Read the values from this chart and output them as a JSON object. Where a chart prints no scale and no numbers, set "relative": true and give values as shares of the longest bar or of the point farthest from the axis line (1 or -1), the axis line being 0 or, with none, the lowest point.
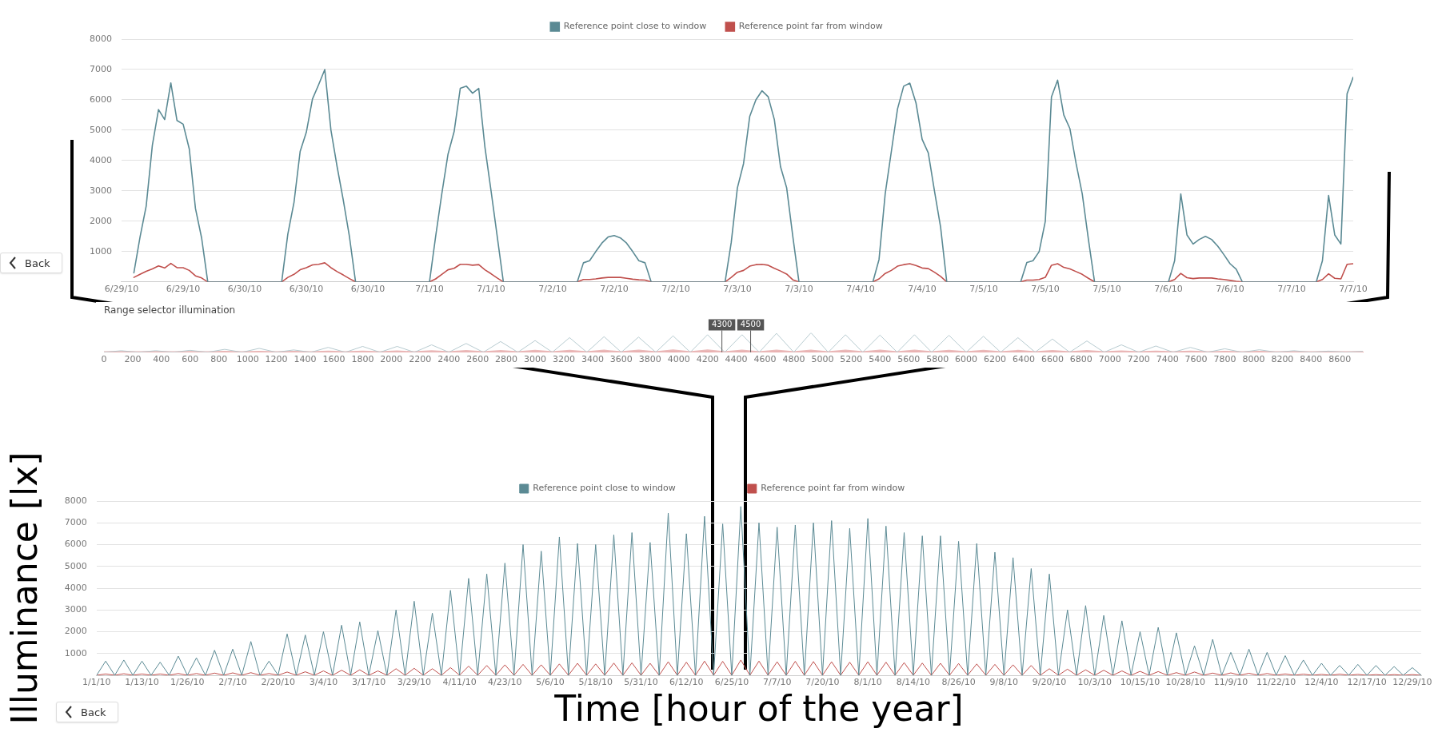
{
  "chart_data": [
    {
      "type": "line",
      "legend": "top",
      "grid": "y",
      "marker": "none",
      "annotations": [
        "Back"
      ],
      "x": [
        "--06-29T06:00",
        "--06-29T07:00",
        "--06-29T08:00",
        "--06-29T09:00",
        "--06-29T10:00",
        "--06-29T11:00",
        "--06-29T12:00",
        "--06-29T13:00",
        "--06-29T14:00",
        "--06-29T15:00",
        "--06-29T16:00",
        "--06-29T17:00",
        "--06-29T18:00",
        "--06-30T06:00",
        "--06-30T07:00",
        "--06-30T08:00",
        "--06-30T09:00",
        "--06-30T10:00",
        "--06-30T11:00",
        "--06-30T12:00",
        "--06-30T13:00",
        "--06-30T14:00",
        "--06-30T15:00",
        "--06-30T16:00",
        "--06-30T17:00",
        "--06-30T18:00",
        "--07-01T06:00",
        "--07-01T07:00",
        "--07-01T08:00",
        "--07-01T09:00",
        "--07-01T10:00",
        "--07-01T11:00",
        "--07-01T12:00",
        "--07-01T13:00",
        "--07-01T14:00",
        "--07-01T15:00",
        "--07-01T16:00",
        "--07-01T17:00",
        "--07-01T18:00",
        "--07-02T06:00",
        "--07-02T07:00",
        "--07-02T08:00",
        "--07-02T09:00",
        "--07-02T10:00",
        "--07-02T11:00",
        "--07-02T12:00",
        "--07-02T13:00",
        "--07-02T14:00",
        "--07-02T15:00",
        "--07-02T16:00",
        "--07-02T17:00",
        "--07-02T18:00",
        "--07-03T06:00",
        "--07-03T07:00",
        "--07-03T08:00",
        "--07-03T09:00",
        "--07-03T10:00",
        "--07-03T11:00",
        "--07-03T12:00",
        "--07-03T13:00",
        "--07-03T14:00",
        "--07-03T15:00",
        "--07-03T16:00",
        "--07-03T17:00",
        "--07-03T18:00",
        "--07-04T06:00",
        "--07-04T07:00",
        "--07-04T08:00",
        "--07-04T09:00",
        "--07-04T10:00",
        "--07-04T11:00",
        "--07-04T12:00",
        "--07-04T13:00",
        "--07-04T14:00",
        "--07-04T15:00",
        "--07-04T16:00",
        "--07-04T17:00",
        "--07-04T18:00",
        "--07-05T06:00",
        "--07-05T07:00",
        "--07-05T08:00",
        "--07-05T09:00",
        "--07-05T10:00",
        "--07-05T11:00",
        "--07-05T12:00",
        "--07-05T13:00",
        "--07-05T14:00",
        "--07-05T15:00",
        "--07-05T16:00",
        "--07-05T17:00",
        "--07-05T18:00",
        "--07-06T06:00",
        "--07-06T07:00",
        "--07-06T08:00",
        "--07-06T09:00",
        "--07-06T10:00",
        "--07-06T11:00",
        "--07-06T12:00",
        "--07-06T13:00",
        "--07-06T14:00",
        "--07-06T15:00",
        "--07-06T16:00",
        "--07-06T17:00",
        "--07-06T18:00",
        "--07-07T06:00",
        "--07-07T07:00",
        "--07-07T08:00",
        "--07-07T09:00",
        "--07-07T10:00",
        "--07-07T11:00",
        "--07-07T12:00"
      ],
      "series": [
        {
          "name": "Reference point close to window",
          "color": "#5b8a94",
          "values": [
            300,
            1480,
            2500,
            4500,
            5680,
            5350,
            6560,
            5320,
            5200,
            4380,
            2420,
            1450,
            0,
            0,
            1580,
            2620,
            4300,
            4930,
            6030,
            6500,
            7000,
            5000,
            3800,
            2700,
            1500,
            0,
            0,
            1500,
            2900,
            4200,
            4950,
            6380,
            6450,
            6220,
            6380,
            4450,
            3000,
            1500,
            0,
            0,
            630,
            700,
            1000,
            1280,
            1480,
            1530,
            1450,
            1280,
            1000,
            700,
            630,
            0,
            0,
            1300,
            3100,
            3900,
            5450,
            6000,
            6300,
            6100,
            5350,
            3800,
            3100,
            1500,
            0,
            0,
            740,
            2900,
            4300,
            5700,
            6450,
            6550,
            5900,
            4700,
            4250,
            3000,
            1800,
            0,
            0,
            640,
            700,
            1000,
            2000,
            6100,
            6650,
            5500,
            5050,
            3900,
            2900,
            1400,
            0,
            0,
            700,
            2900,
            1550,
            1250,
            1400,
            1500,
            1400,
            1180,
            900,
            600,
            420,
            0,
            0,
            700,
            2850,
            1550,
            1250,
            6200,
            6750
          ]
        },
        {
          "name": "Reference point far from window",
          "color": "#c0504d",
          "values": [
            150,
            250,
            350,
            430,
            530,
            460,
            610,
            470,
            470,
            380,
            200,
            130,
            0,
            0,
            150,
            250,
            400,
            470,
            560,
            580,
            630,
            470,
            340,
            230,
            110,
            0,
            0,
            100,
            250,
            400,
            450,
            580,
            580,
            550,
            570,
            400,
            270,
            130,
            0,
            0,
            80,
            80,
            100,
            130,
            150,
            150,
            150,
            120,
            90,
            70,
            60,
            0,
            0,
            150,
            320,
            380,
            520,
            570,
            580,
            550,
            450,
            360,
            260,
            70,
            0,
            0,
            100,
            280,
            380,
            520,
            570,
            600,
            540,
            460,
            440,
            320,
            180,
            0,
            0,
            60,
            60,
            80,
            150,
            550,
            600,
            480,
            430,
            340,
            250,
            120,
            0,
            0,
            80,
            280,
            140,
            110,
            130,
            130,
            130,
            100,
            80,
            50,
            20,
            0,
            0,
            80,
            270,
            120,
            100,
            580,
            600
          ]
        }
      ],
      "xlim": [
        "--06-29T04:00",
        "--07-07T12:00"
      ],
      "xticks": [
        {
          "value": "--06-29T04:00",
          "label": "6/29/10"
        },
        {
          "value": "--06-29T14:00",
          "label": "6/29/10"
        },
        {
          "value": "--06-30T00:00",
          "label": "6/30/10"
        },
        {
          "value": "--06-30T10:00",
          "label": "6/30/10"
        },
        {
          "value": "--06-30T20:00",
          "label": "6/30/10"
        },
        {
          "value": "--07-01T06:00",
          "label": "7/1/10"
        },
        {
          "value": "--07-01T16:00",
          "label": "7/1/10"
        },
        {
          "value": "--07-02T02:00",
          "label": "7/2/10"
        },
        {
          "value": "--07-02T12:00",
          "label": "7/2/10"
        },
        {
          "value": "--07-02T22:00",
          "label": "7/2/10"
        },
        {
          "value": "--07-03T08:00",
          "label": "7/3/10"
        },
        {
          "value": "--07-03T18:00",
          "label": "7/3/10"
        },
        {
          "value": "--07-04T04:00",
          "label": "7/4/10"
        },
        {
          "value": "--07-04T14:00",
          "label": "7/4/10"
        },
        {
          "value": "--07-05T00:00",
          "label": "7/5/10"
        },
        {
          "value": "--07-05T10:00",
          "label": "7/5/10"
        },
        {
          "value": "--07-05T20:00",
          "label": "7/5/10"
        },
        {
          "value": "--07-06T06:00",
          "label": "7/6/10"
        },
        {
          "value": "--07-06T16:00",
          "label": "7/6/10"
        },
        {
          "value": "--07-07T02:00",
          "label": "7/7/10"
        },
        {
          "value": "--07-07T12:00",
          "label": "7/7/10"
        }
      ],
      "ylim": [
        0,
        8000
      ],
      "yticks": [
        1000,
        2000,
        3000,
        4000,
        5000,
        6000,
        7000,
        8000
      ]
    },
    {
      "type": "line",
      "title": "Range selector illumination",
      "relative": true,
      "grid": false,
      "marker": "none",
      "x": [
        0,
        120,
        240,
        360,
        480,
        600,
        720,
        840,
        960,
        1080,
        1200,
        1320,
        1440,
        1560,
        1680,
        1800,
        1920,
        2040,
        2160,
        2280,
        2400,
        2520,
        2640,
        2760,
        2880,
        3000,
        3120,
        3240,
        3360,
        3480,
        3600,
        3720,
        3840,
        3960,
        4080,
        4200,
        4320,
        4440,
        4560,
        4680,
        4800,
        4920,
        5040,
        5160,
        5280,
        5400,
        5520,
        5640,
        5760,
        5880,
        6000,
        6120,
        6240,
        6360,
        6480,
        6600,
        6720,
        6840,
        6960,
        7080,
        7200,
        7320,
        7440,
        7560,
        7680,
        7800,
        7920,
        8040,
        8160,
        8280,
        8400,
        8520,
        8640,
        8760
      ],
      "series": [
        {
          "color": "#b7cbd0",
          "values": [
            0,
            0.08,
            0,
            0.08,
            0,
            0.1,
            0,
            0.15,
            0,
            0.2,
            0,
            0.12,
            0,
            0.25,
            0,
            0.3,
            0,
            0.3,
            0,
            0.38,
            0,
            0.45,
            0,
            0.55,
            0,
            0.6,
            0,
            0.75,
            0,
            0.8,
            0,
            0.78,
            0,
            0.84,
            0,
            0.9,
            0,
            0.9,
            0,
            0.97,
            0,
            1,
            0,
            0.9,
            0,
            0.88,
            0,
            0.9,
            0,
            0.87,
            0,
            0.82,
            0,
            0.75,
            0,
            0.68,
            0,
            0.58,
            0,
            0.38,
            0,
            0.32,
            0,
            0.25,
            0,
            0.18,
            0,
            0.13,
            0,
            0.08,
            0,
            0.06,
            0,
            0.05
          ]
        },
        {
          "color": "#eab9b9",
          "values": [
            0,
            0.01,
            0,
            0.01,
            0,
            0.01,
            0,
            0.02,
            0,
            0.02,
            0,
            0.02,
            0,
            0.03,
            0,
            0.03,
            0,
            0.04,
            0,
            0.05,
            0,
            0.06,
            0,
            0.06,
            0,
            0.07,
            0,
            0.07,
            0,
            0.08,
            0,
            0.08,
            0,
            0.09,
            0,
            0.09,
            0,
            0.08,
            0,
            0.08,
            0,
            0.08,
            0,
            0.08,
            0,
            0.08,
            0,
            0.08,
            0,
            0.07,
            0,
            0.07,
            0,
            0.07,
            0,
            0.06,
            0,
            0.06,
            0,
            0.04,
            0,
            0.03,
            0,
            0.03,
            0,
            0.02,
            0,
            0.02,
            0,
            0.01,
            0,
            0.01,
            0,
            0.01
          ]
        }
      ],
      "xlim": [
        0,
        8760
      ],
      "xticks": [
        0,
        200,
        400,
        600,
        800,
        1000,
        1200,
        1400,
        1600,
        1800,
        2000,
        2200,
        2400,
        2600,
        2800,
        3000,
        3200,
        3400,
        3600,
        3800,
        4000,
        4200,
        4400,
        4600,
        4800,
        5000,
        5200,
        5400,
        5600,
        5800,
        6000,
        6200,
        6400,
        6600,
        6800,
        7000,
        7200,
        7400,
        7600,
        7800,
        8000,
        8200,
        8400,
        8600
      ],
      "ref_lines": [
        {
          "axis": "x",
          "value": 4300,
          "label": "4300"
        },
        {
          "axis": "x",
          "value": 4500,
          "label": "4500"
        }
      ]
    },
    {
      "type": "line",
      "legend": "top",
      "grid": "y",
      "marker": "none",
      "annotations": [
        "Back"
      ],
      "xlabel": "Time [hour of the year]",
      "ylabel": "Illuminance [lx]",
      "x": [
        "--01-01T00:00",
        "--01-03T12:00",
        "--01-06T00:00",
        "--01-08T12:00",
        "--01-11T00:00",
        "--01-13T12:00",
        "--01-16T00:00",
        "--01-18T12:00",
        "--01-21T00:00",
        "--01-23T12:00",
        "--01-26T00:00",
        "--01-28T12:00",
        "--01-31T00:00",
        "--02-02T12:00",
        "--02-05T00:00",
        "--02-07T12:00",
        "--02-10T00:00",
        "--02-12T12:00",
        "--02-15T00:00",
        "--02-17T12:00",
        "--02-20T00:00",
        "--02-22T12:00",
        "--02-25T00:00",
        "--02-27T12:00",
        "--03-02T00:00",
        "--03-04T12:00",
        "--03-07T00:00",
        "--03-09T12:00",
        "--03-12T00:00",
        "--03-14T12:00",
        "--03-17T00:00",
        "--03-19T12:00",
        "--03-22T00:00",
        "--03-24T12:00",
        "--03-27T00:00",
        "--03-29T12:00",
        "--04-01T00:00",
        "--04-03T12:00",
        "--04-06T00:00",
        "--04-08T12:00",
        "--04-11T00:00",
        "--04-13T12:00",
        "--04-16T00:00",
        "--04-18T12:00",
        "--04-21T00:00",
        "--04-23T12:00",
        "--04-26T00:00",
        "--04-28T12:00",
        "--05-01T00:00",
        "--05-03T12:00",
        "--05-06T00:00",
        "--05-08T12:00",
        "--05-11T00:00",
        "--05-13T12:00",
        "--05-16T00:00",
        "--05-18T12:00",
        "--05-21T00:00",
        "--05-23T12:00",
        "--05-26T00:00",
        "--05-28T12:00",
        "--05-31T00:00",
        "--06-02T12:00",
        "--06-05T00:00",
        "--06-07T12:00",
        "--06-10T00:00",
        "--06-12T12:00",
        "--06-15T00:00",
        "--06-17T12:00",
        "--06-20T00:00",
        "--06-22T12:00",
        "--06-25T00:00",
        "--06-27T12:00",
        "--06-30T00:00",
        "--07-02T12:00",
        "--07-05T00:00",
        "--07-07T12:00",
        "--07-10T00:00",
        "--07-12T12:00",
        "--07-15T00:00",
        "--07-17T12:00",
        "--07-20T00:00",
        "--07-22T12:00",
        "--07-25T00:00",
        "--07-27T12:00",
        "--07-30T00:00",
        "--08-01T12:00",
        "--08-04T00:00",
        "--08-06T12:00",
        "--08-09T00:00",
        "--08-11T12:00",
        "--08-14T00:00",
        "--08-16T12:00",
        "--08-19T00:00",
        "--08-21T12:00",
        "--08-24T00:00",
        "--08-26T12:00",
        "--08-29T00:00",
        "--08-31T12:00",
        "--09-03T00:00",
        "--09-05T12:00",
        "--09-08T00:00",
        "--09-10T12:00",
        "--09-13T00:00",
        "--09-15T12:00",
        "--09-18T00:00",
        "--09-20T12:00",
        "--09-23T00:00",
        "--09-25T12:00",
        "--09-28T00:00",
        "--09-30T12:00",
        "--10-03T00:00",
        "--10-05T12:00",
        "--10-08T00:00",
        "--10-10T12:00",
        "--10-13T00:00",
        "--10-15T12:00",
        "--10-18T00:00",
        "--10-20T12:00",
        "--10-23T00:00",
        "--10-25T12:00",
        "--10-28T00:00",
        "--10-30T12:00",
        "--11-02T00:00",
        "--11-04T12:00",
        "--11-07T00:00",
        "--11-09T12:00",
        "--11-12T00:00",
        "--11-14T12:00",
        "--11-17T00:00",
        "--11-19T12:00",
        "--11-22T00:00",
        "--11-24T12:00",
        "--11-27T00:00",
        "--11-29T12:00",
        "--12-02T00:00",
        "--12-04T12:00",
        "--12-07T00:00",
        "--12-09T12:00",
        "--12-12T00:00",
        "--12-14T12:00",
        "--12-17T00:00",
        "--12-19T12:00",
        "--12-22T00:00",
        "--12-24T12:00",
        "--12-27T00:00",
        "--12-29T12:00",
        "--12-31T23:00"
      ],
      "series": [
        {
          "name": "Reference point close to window",
          "color": "#5b8a94",
          "values": [
            0,
            650,
            0,
            700,
            0,
            650,
            0,
            600,
            0,
            880,
            0,
            800,
            0,
            1150,
            0,
            1200,
            0,
            1550,
            0,
            650,
            0,
            1900,
            0,
            1850,
            0,
            2000,
            0,
            2300,
            0,
            2450,
            0,
            2050,
            0,
            3000,
            0,
            3400,
            0,
            2850,
            0,
            3900,
            0,
            4450,
            0,
            4650,
            0,
            5150,
            0,
            6000,
            0,
            5700,
            0,
            6350,
            0,
            6050,
            0,
            6000,
            0,
            6450,
            0,
            6550,
            0,
            6100,
            0,
            7450,
            0,
            6500,
            0,
            7300,
            0,
            6950,
            0,
            7750,
            0,
            7000,
            0,
            6800,
            0,
            6900,
            0,
            7000,
            0,
            7100,
            0,
            6750,
            0,
            7200,
            0,
            6850,
            0,
            6550,
            0,
            6400,
            0,
            6400,
            0,
            6150,
            0,
            6050,
            0,
            5650,
            0,
            5400,
            0,
            4900,
            0,
            4650,
            0,
            3000,
            0,
            3200,
            0,
            2750,
            0,
            2500,
            0,
            2000,
            0,
            2200,
            0,
            1950,
            0,
            1350,
            0,
            1650,
            0,
            1050,
            0,
            1200,
            0,
            1050,
            0,
            900,
            0,
            700,
            0,
            550,
            0,
            450,
            0,
            500,
            0,
            450,
            0,
            400,
            0,
            350,
            0
          ]
        },
        {
          "name": "Reference point far from window",
          "color": "#c0504d",
          "values": [
            0,
            60,
            0,
            70,
            0,
            60,
            0,
            60,
            0,
            80,
            0,
            80,
            0,
            100,
            0,
            110,
            0,
            120,
            0,
            80,
            0,
            150,
            0,
            160,
            0,
            200,
            0,
            230,
            0,
            250,
            0,
            200,
            0,
            300,
            0,
            320,
            0,
            300,
            0,
            350,
            0,
            420,
            0,
            450,
            0,
            480,
            0,
            500,
            0,
            480,
            0,
            520,
            0,
            550,
            0,
            520,
            0,
            560,
            0,
            570,
            0,
            550,
            0,
            620,
            0,
            600,
            0,
            650,
            0,
            640,
            0,
            700,
            0,
            650,
            0,
            620,
            0,
            640,
            0,
            630,
            0,
            620,
            0,
            600,
            0,
            620,
            0,
            600,
            0,
            580,
            0,
            560,
            0,
            550,
            0,
            540,
            0,
            520,
            0,
            500,
            0,
            480,
            0,
            450,
            0,
            300,
            0,
            280,
            0,
            250,
            0,
            230,
            0,
            200,
            0,
            180,
            0,
            170,
            0,
            120,
            0,
            150,
            0,
            100,
            0,
            110,
            0,
            90,
            0,
            80,
            0,
            60,
            0,
            50,
            0,
            40,
            0,
            50,
            0,
            40,
            0,
            30,
            0,
            30,
            0,
            30,
            0
          ]
        }
      ],
      "xlim": [
        "--01-01T00:00",
        "--12-31T23:00"
      ],
      "xticks": [
        {
          "value": "--01-01T00:00",
          "label": "1/1/10"
        },
        {
          "value": "--01-13T12:00",
          "label": "1/13/10"
        },
        {
          "value": "--01-26T00:00",
          "label": "1/26/10"
        },
        {
          "value": "--02-07T12:00",
          "label": "2/7/10"
        },
        {
          "value": "--02-20T00:00",
          "label": "2/20/10"
        },
        {
          "value": "--03-04T12:00",
          "label": "3/4/10"
        },
        {
          "value": "--03-17T00:00",
          "label": "3/17/10"
        },
        {
          "value": "--03-29T12:00",
          "label": "3/29/10"
        },
        {
          "value": "--04-11T00:00",
          "label": "4/11/10"
        },
        {
          "value": "--04-23T12:00",
          "label": "4/23/10"
        },
        {
          "value": "--05-06T00:00",
          "label": "5/6/10"
        },
        {
          "value": "--05-18T12:00",
          "label": "5/18/10"
        },
        {
          "value": "--05-31T00:00",
          "label": "5/31/10"
        },
        {
          "value": "--06-12T12:00",
          "label": "6/12/10"
        },
        {
          "value": "--06-25T00:00",
          "label": "6/25/10"
        },
        {
          "value": "--07-07T12:00",
          "label": "7/7/10"
        },
        {
          "value": "--07-20T00:00",
          "label": "7/20/10"
        },
        {
          "value": "--08-01T12:00",
          "label": "8/1/10"
        },
        {
          "value": "--08-14T00:00",
          "label": "8/14/10"
        },
        {
          "value": "--08-26T12:00",
          "label": "8/26/10"
        },
        {
          "value": "--09-08T00:00",
          "label": "9/8/10"
        },
        {
          "value": "--09-20T12:00",
          "label": "9/20/10"
        },
        {
          "value": "--10-03T00:00",
          "label": "10/3/10"
        },
        {
          "value": "--10-15T12:00",
          "label": "10/15/10"
        },
        {
          "value": "--10-28T00:00",
          "label": "10/28/10"
        },
        {
          "value": "--11-09T12:00",
          "label": "11/9/10"
        },
        {
          "value": "--11-22T00:00",
          "label": "11/22/10"
        },
        {
          "value": "--12-04T12:00",
          "label": "12/4/10"
        },
        {
          "value": "--12-17T00:00",
          "label": "12/17/10"
        },
        {
          "value": "--12-29T12:00",
          "label": "12/29/10"
        }
      ],
      "ylim": [
        0,
        8000
      ],
      "yticks": [
        1000,
        2000,
        3000,
        4000,
        5000,
        6000,
        7000,
        8000
      ]
    }
  ]
}
